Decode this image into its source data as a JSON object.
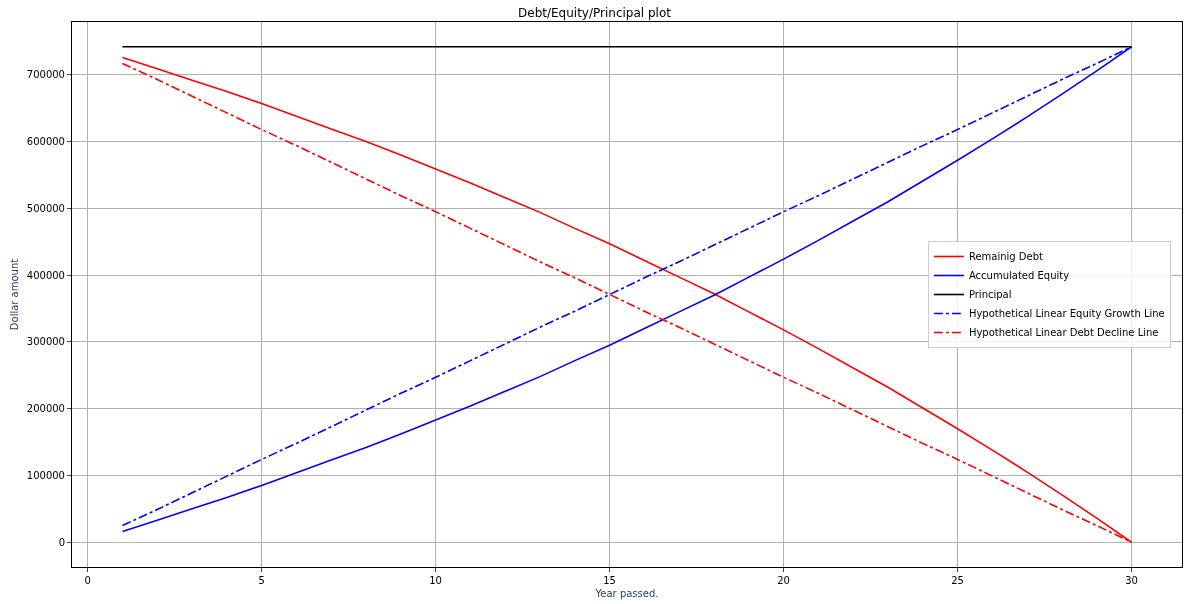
{
  "chart_data": {
    "type": "line",
    "title": "Debt/Equity/Principal plot",
    "xlabel": "Year passed.",
    "ylabel": "Dollar amount",
    "x": [
      1,
      2,
      3,
      4,
      5,
      6,
      7,
      8,
      9,
      10,
      11,
      12,
      13,
      14,
      15,
      16,
      17,
      18,
      19,
      20,
      21,
      22,
      23,
      24,
      25,
      26,
      27,
      28,
      29,
      30
    ],
    "series": [
      {
        "name": "Remainig Debt",
        "color": "#ff0000",
        "line_style": "solid",
        "values": [
          726000,
          709000,
          692000,
          675000,
          657000,
          638000,
          619000,
          600000,
          580000,
          559000,
          538000,
          516000,
          494000,
          470000,
          447000,
          422000,
          397000,
          372000,
          345000,
          318000,
          290000,
          261000,
          232000,
          201000,
          170000,
          138000,
          105000,
          71000,
          36000,
          0
        ]
      },
      {
        "name": "Accumulated Equity",
        "color": "#0000ff",
        "line_style": "solid",
        "values": [
          16000,
          33000,
          50000,
          67000,
          85000,
          104000,
          123000,
          142000,
          162000,
          183000,
          204000,
          226000,
          248000,
          272000,
          295000,
          320000,
          345000,
          370000,
          397000,
          424000,
          452000,
          481000,
          510000,
          541000,
          572000,
          604000,
          637000,
          671000,
          706000,
          742000
        ]
      },
      {
        "name": "Principal",
        "color": "#000000",
        "line_style": "solid",
        "values": [
          742000,
          742000,
          742000,
          742000,
          742000,
          742000,
          742000,
          742000,
          742000,
          742000,
          742000,
          742000,
          742000,
          742000,
          742000,
          742000,
          742000,
          742000,
          742000,
          742000,
          742000,
          742000,
          742000,
          742000,
          742000,
          742000,
          742000,
          742000,
          742000,
          742000
        ]
      },
      {
        "name": "Hypothetical Linear Equity Growth Line",
        "color": "#0000ff",
        "line_style": "dashdot",
        "values": [
          25000,
          49000,
          74000,
          99000,
          124000,
          148000,
          173000,
          198000,
          223000,
          247000,
          272000,
          297000,
          322000,
          346000,
          371000,
          396000,
          420000,
          445000,
          470000,
          495000,
          519000,
          544000,
          569000,
          594000,
          618000,
          643000,
          668000,
          693000,
          717000,
          742000
        ]
      },
      {
        "name": "Hypothetical Linear Debt Decline Line",
        "color": "#ff0000",
        "line_style": "dashdot",
        "values": [
          717000,
          693000,
          668000,
          643000,
          618000,
          594000,
          569000,
          544000,
          519000,
          495000,
          470000,
          445000,
          420000,
          396000,
          371000,
          346000,
          322000,
          297000,
          272000,
          247000,
          223000,
          198000,
          173000,
          148000,
          124000,
          99000,
          74000,
          49000,
          25000,
          0
        ]
      }
    ],
    "xlim": [
      -0.45,
      31.45
    ],
    "xticks": [
      0,
      5,
      10,
      15,
      20,
      25,
      30
    ],
    "ylim": [
      -37100,
      779100
    ],
    "yticks": [
      0,
      100000,
      200000,
      300000,
      400000,
      500000,
      600000,
      700000
    ],
    "grid": true,
    "legend": "right",
    "marker": "none"
  }
}
